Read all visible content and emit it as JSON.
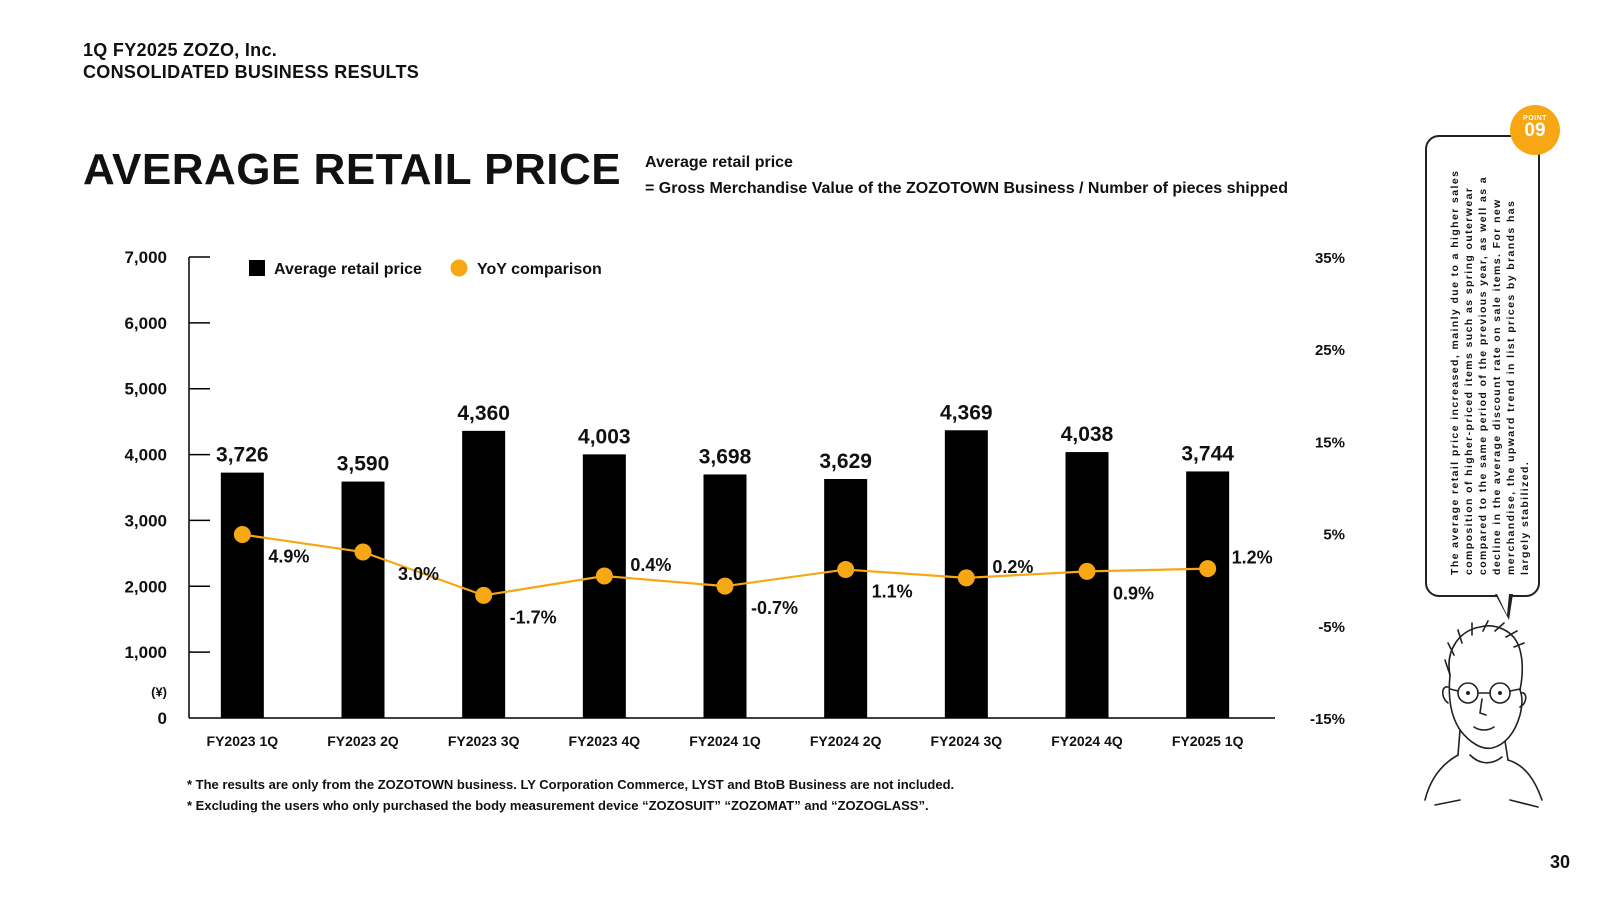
{
  "header": {
    "line1": "1Q FY2025 ZOZO, Inc.",
    "line2": "CONSOLIDATED BUSINESS RESULTS"
  },
  "title": "AVERAGE RETAIL PRICE",
  "definition": {
    "line1": "Average retail price",
    "line2": "= Gross Merchandise Value of the ZOZOTOWN Business / Number of pieces shipped"
  },
  "legend": {
    "bar_label": "Average retail price",
    "line_label": "YoY comparison"
  },
  "chart_data": {
    "type": "bar",
    "categories": [
      "FY2023 1Q",
      "FY2023 2Q",
      "FY2023 3Q",
      "FY2023 4Q",
      "FY2024 1Q",
      "FY2024 2Q",
      "FY2024 3Q",
      "FY2024 4Q",
      "FY2025 1Q"
    ],
    "series": [
      {
        "name": "Average retail price",
        "type": "bar",
        "axis": "left",
        "values": [
          3726,
          3590,
          4360,
          4003,
          3698,
          3629,
          4369,
          4038,
          3744
        ],
        "labels": [
          "3,726",
          "3,590",
          "4,360",
          "4,003",
          "3,698",
          "3,629",
          "4,369",
          "4,038",
          "3,744"
        ],
        "color": "#000000"
      },
      {
        "name": "YoY comparison",
        "type": "line",
        "axis": "right",
        "values": [
          4.9,
          3.0,
          -1.7,
          0.4,
          -0.7,
          1.1,
          0.2,
          0.9,
          1.2
        ],
        "labels": [
          "4.9%",
          "3.0%",
          "-1.7%",
          "0.4%",
          "-0.7%",
          "1.1%",
          "0.2%",
          "0.9%",
          "1.2%"
        ],
        "color": "#f7a714"
      }
    ],
    "y_left": {
      "ylim": [
        0,
        7000
      ],
      "ticks": [
        0,
        1000,
        2000,
        3000,
        4000,
        5000,
        6000,
        7000
      ],
      "tick_labels": [
        "0",
        "1,000",
        "2,000",
        "3,000",
        "4,000",
        "5,000",
        "6,000",
        "7,000"
      ],
      "unit": "(¥)"
    },
    "y_right": {
      "ylim": [
        -15,
        35
      ],
      "ticks": [
        -15,
        -5,
        5,
        15,
        25,
        35
      ],
      "tick_labels": [
        "-15%",
        "-5%",
        "5%",
        "15%",
        "25%",
        "35%"
      ]
    },
    "grid": false,
    "legend_position": "top-left"
  },
  "notes": [
    "* The results are only from the ZOZOTOWN business. LY Corporation Commerce, LYST and BtoB Business are not included.",
    "* Excluding the users who only purchased the body measurement device “ZOZOSUIT” “ZOZOMAT” and “ZOZOGLASS”."
  ],
  "callout": {
    "point_label": "POINT",
    "point_number": "09",
    "text": "The average retail price increased, mainly due to a higher sales composition of higher-priced items such as spring outerwear compared to the same period of the previous year, as well as a decline in the average discount rate on sale items. For new merchandise, the upward trend in list prices by brands has largely stabilized."
  },
  "page_number": "30",
  "colors": {
    "accent": "#f7a714",
    "bar": "#000000",
    "text": "#111111"
  }
}
